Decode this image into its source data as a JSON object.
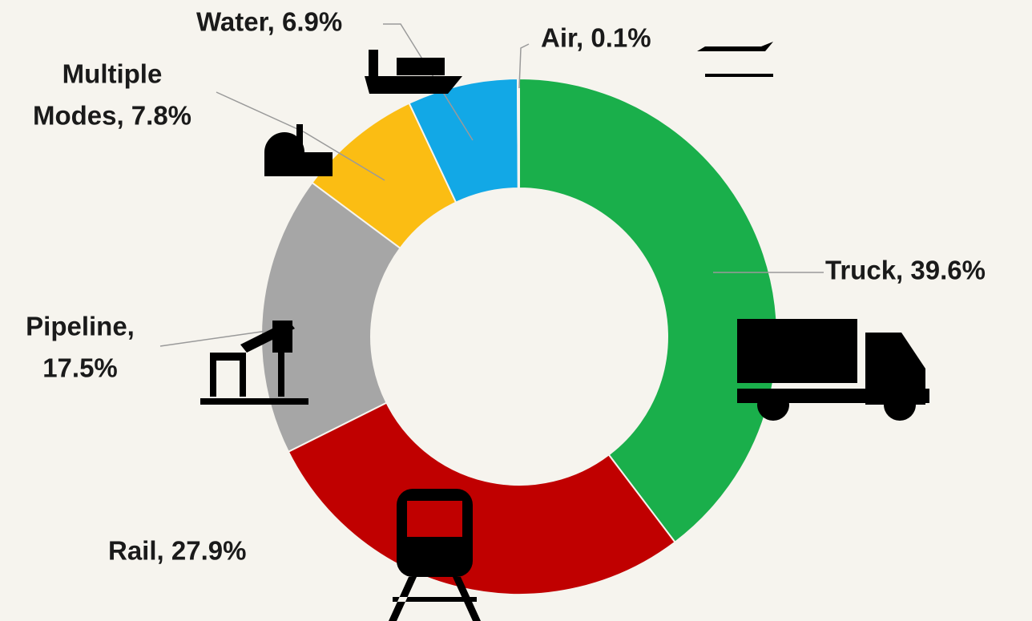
{
  "chart_data": {
    "type": "donut",
    "categories": [
      "Truck",
      "Rail",
      "Pipeline",
      "Multiple Modes",
      "Water",
      "Air"
    ],
    "values": [
      39.6,
      27.9,
      17.5,
      7.8,
      6.9,
      0.1
    ],
    "value_labels": [
      [
        "Truck, 39.6%"
      ],
      [
        "Rail, 27.9%"
      ],
      [
        "Pipeline,",
        "17.5%"
      ],
      [
        "Multiple",
        "Modes, 7.8%"
      ],
      [
        "Water, 6.9%"
      ],
      [
        "Air, 0.1%"
      ]
    ],
    "colors": [
      "#1aaf4b",
      "#c00000",
      "#a6a6a6",
      "#fbbd13",
      "#12a8e6",
      "#e8e8e8"
    ]
  }
}
